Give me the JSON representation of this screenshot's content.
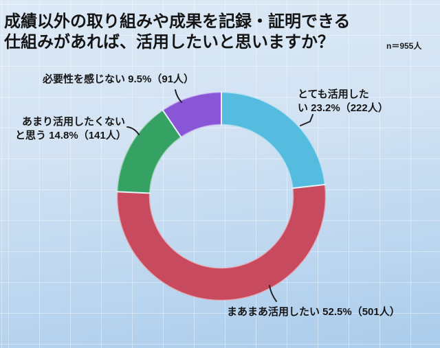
{
  "header": {
    "title_line1": "成績以外の取り組みや成果を記録・証明できる",
    "title_line2": "仕組みがあれば、活用したいと思いますか？",
    "sample_size": "n＝955人"
  },
  "chart_data": {
    "type": "pie",
    "subtype": "donut",
    "title": "成績以外の取り組みや成果を記録・証明できる仕組みがあれば、活用したいと思いますか？",
    "sample_size_label": "n＝955人",
    "total_responses": 955,
    "start_angle": "top",
    "direction": "clockwise",
    "legend_position": "callout-labels",
    "segments": [
      {
        "label": "とても活用したい",
        "pct": 23.2,
        "count": 222,
        "color": "#55bbdf"
      },
      {
        "label": "まあまあ活用したい",
        "pct": 52.5,
        "count": 501,
        "color": "#c84a5e"
      },
      {
        "label": "あまり活用したくないと思う",
        "pct": 14.8,
        "count": 141,
        "color": "#35a264"
      },
      {
        "label": "必要性を感じない",
        "pct": 9.5,
        "count": 91,
        "color": "#8a56d8"
      }
    ]
  },
  "callouts": {
    "no_need": {
      "line1": "必要性を感じない 9.5%（91人）"
    },
    "not_much": {
      "line1": "あまり活用したくない",
      "line2": "と思う 14.8%（141人）"
    },
    "very": {
      "line1": "とても活用した",
      "line2": "い 23.2%（222人）"
    },
    "somewhat": {
      "line1": "まあまあ活用したい 52.5%（501人）"
    }
  }
}
